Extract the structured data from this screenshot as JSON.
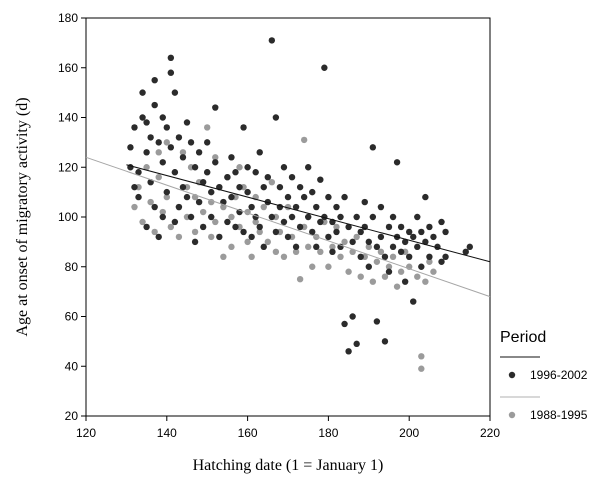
{
  "chart_data": {
    "type": "scatter",
    "xlabel": "Hatching date (1 = January 1)",
    "ylabel": "Age at onset of migratory activity (d)",
    "xlim": [
      120,
      220
    ],
    "ylim": [
      20,
      180
    ],
    "xticks": [
      120,
      140,
      160,
      180,
      200,
      220
    ],
    "yticks": [
      20,
      40,
      60,
      80,
      100,
      120,
      140,
      160,
      180
    ],
    "grid": false,
    "legend": {
      "title": "Period",
      "placement": "right"
    },
    "series": [
      {
        "name": "1996-2002",
        "color": "#2b2b2b",
        "fit_line": {
          "x": [
            130,
            220
          ],
          "y": [
            121,
            82
          ]
        },
        "points": [
          [
            131,
            128
          ],
          [
            131,
            120
          ],
          [
            132,
            136
          ],
          [
            132,
            112
          ],
          [
            133,
            108
          ],
          [
            133,
            118
          ],
          [
            134,
            150
          ],
          [
            134,
            140
          ],
          [
            135,
            138
          ],
          [
            135,
            126
          ],
          [
            135,
            96
          ],
          [
            136,
            132
          ],
          [
            136,
            114
          ],
          [
            137,
            145
          ],
          [
            137,
            104
          ],
          [
            137,
            155
          ],
          [
            138,
            130
          ],
          [
            138,
            92
          ],
          [
            139,
            140
          ],
          [
            139,
            122
          ],
          [
            139,
            100
          ],
          [
            140,
            136
          ],
          [
            140,
            110
          ],
          [
            141,
            128
          ],
          [
            141,
            158
          ],
          [
            141,
            164
          ],
          [
            142,
            150
          ],
          [
            142,
            118
          ],
          [
            142,
            98
          ],
          [
            143,
            132
          ],
          [
            143,
            104
          ],
          [
            144,
            124
          ],
          [
            144,
            112
          ],
          [
            145,
            138
          ],
          [
            145,
            108
          ],
          [
            146,
            130
          ],
          [
            146,
            100
          ],
          [
            147,
            120
          ],
          [
            147,
            90
          ],
          [
            148,
            126
          ],
          [
            148,
            106
          ],
          [
            149,
            114
          ],
          [
            149,
            96
          ],
          [
            150,
            130
          ],
          [
            150,
            118
          ],
          [
            151,
            110
          ],
          [
            151,
            100
          ],
          [
            152,
            144
          ],
          [
            152,
            122
          ],
          [
            153,
            112
          ],
          [
            153,
            92
          ],
          [
            154,
            106
          ],
          [
            155,
            116
          ],
          [
            155,
            98
          ],
          [
            156,
            124
          ],
          [
            156,
            108
          ],
          [
            157,
            118
          ],
          [
            157,
            96
          ],
          [
            158,
            112
          ],
          [
            158,
            102
          ],
          [
            159,
            136
          ],
          [
            159,
            94
          ],
          [
            160,
            120
          ],
          [
            160,
            110
          ],
          [
            161,
            104
          ],
          [
            161,
            92
          ],
          [
            162,
            118
          ],
          [
            162,
            100
          ],
          [
            163,
            126
          ],
          [
            163,
            96
          ],
          [
            164,
            112
          ],
          [
            164,
            88
          ],
          [
            165,
            106
          ],
          [
            165,
            116
          ],
          [
            166,
            171
          ],
          [
            166,
            100
          ],
          [
            167,
            140
          ],
          [
            167,
            94
          ],
          [
            168,
            112
          ],
          [
            168,
            104
          ],
          [
            169,
            98
          ],
          [
            169,
            120
          ],
          [
            170,
            108
          ],
          [
            170,
            92
          ],
          [
            171,
            116
          ],
          [
            171,
            100
          ],
          [
            172,
            104
          ],
          [
            172,
            88
          ],
          [
            173,
            112
          ],
          [
            173,
            96
          ],
          [
            174,
            108
          ],
          [
            175,
            100
          ],
          [
            175,
            120
          ],
          [
            176,
            94
          ],
          [
            176,
            110
          ],
          [
            177,
            104
          ],
          [
            177,
            88
          ],
          [
            178,
            98
          ],
          [
            178,
            115
          ],
          [
            179,
            160
          ],
          [
            179,
            100
          ],
          [
            180,
            92
          ],
          [
            180,
            108
          ],
          [
            181,
            98
          ],
          [
            181,
            86
          ],
          [
            182,
            104
          ],
          [
            182,
            94
          ],
          [
            183,
            100
          ],
          [
            183,
            88
          ],
          [
            184,
            108
          ],
          [
            184,
            57
          ],
          [
            185,
            96
          ],
          [
            185,
            46
          ],
          [
            186,
            60
          ],
          [
            186,
            90
          ],
          [
            187,
            49
          ],
          [
            187,
            100
          ],
          [
            188,
            94
          ],
          [
            188,
            84
          ],
          [
            189,
            106
          ],
          [
            189,
            96
          ],
          [
            190,
            90
          ],
          [
            190,
            80
          ],
          [
            191,
            128
          ],
          [
            191,
            100
          ],
          [
            192,
            88
          ],
          [
            192,
            58
          ],
          [
            193,
            104
          ],
          [
            193,
            92
          ],
          [
            194,
            50
          ],
          [
            194,
            84
          ],
          [
            195,
            96
          ],
          [
            195,
            78
          ],
          [
            196,
            88
          ],
          [
            196,
            100
          ],
          [
            197,
            92
          ],
          [
            197,
            122
          ],
          [
            198,
            86
          ],
          [
            198,
            96
          ],
          [
            199,
            90
          ],
          [
            199,
            74
          ],
          [
            200,
            94
          ],
          [
            200,
            84
          ],
          [
            201,
            66
          ],
          [
            201,
            92
          ],
          [
            202,
            88
          ],
          [
            202,
            100
          ],
          [
            203,
            80
          ],
          [
            203,
            94
          ],
          [
            204,
            90
          ],
          [
            204,
            108
          ],
          [
            205,
            84
          ],
          [
            205,
            96
          ],
          [
            206,
            92
          ],
          [
            207,
            88
          ],
          [
            208,
            82
          ],
          [
            208,
            98
          ],
          [
            209,
            84
          ],
          [
            209,
            94
          ],
          [
            215,
            88
          ],
          [
            214,
            86
          ]
        ]
      },
      {
        "name": "1988-1995",
        "color": "#9b9b9b",
        "fit_line": {
          "x": [
            120,
            220
          ],
          "y": [
            124,
            68
          ]
        },
        "points": [
          [
            132,
            104
          ],
          [
            133,
            112
          ],
          [
            134,
            98
          ],
          [
            135,
            120
          ],
          [
            136,
            106
          ],
          [
            137,
            94
          ],
          [
            138,
            116
          ],
          [
            138,
            126
          ],
          [
            139,
            102
          ],
          [
            140,
            130
          ],
          [
            140,
            108
          ],
          [
            141,
            96
          ],
          [
            141,
            158
          ],
          [
            142,
            118
          ],
          [
            143,
            104
          ],
          [
            143,
            92
          ],
          [
            144,
            126
          ],
          [
            145,
            112
          ],
          [
            145,
            100
          ],
          [
            146,
            120
          ],
          [
            147,
            108
          ],
          [
            147,
            94
          ],
          [
            148,
            114
          ],
          [
            149,
            102
          ],
          [
            150,
            136
          ],
          [
            150,
            118
          ],
          [
            151,
            106
          ],
          [
            151,
            92
          ],
          [
            152,
            124
          ],
          [
            152,
            98
          ],
          [
            153,
            112
          ],
          [
            154,
            84
          ],
          [
            154,
            104
          ],
          [
            155,
            116
          ],
          [
            156,
            100
          ],
          [
            156,
            88
          ],
          [
            157,
            108
          ],
          [
            158,
            96
          ],
          [
            158,
            120
          ],
          [
            159,
            112
          ],
          [
            160,
            102
          ],
          [
            160,
            90
          ],
          [
            161,
            84
          ],
          [
            162,
            108
          ],
          [
            162,
            98
          ],
          [
            163,
            94
          ],
          [
            164,
            104
          ],
          [
            165,
            90
          ],
          [
            166,
            114
          ],
          [
            167,
            100
          ],
          [
            167,
            86
          ],
          [
            168,
            94
          ],
          [
            169,
            84
          ],
          [
            170,
            104
          ],
          [
            171,
            92
          ],
          [
            172,
            86
          ],
          [
            173,
            75
          ],
          [
            174,
            96
          ],
          [
            174,
            131
          ],
          [
            175,
            88
          ],
          [
            176,
            80
          ],
          [
            177,
            92
          ],
          [
            178,
            86
          ],
          [
            179,
            98
          ],
          [
            180,
            80
          ],
          [
            181,
            88
          ],
          [
            182,
            96
          ],
          [
            183,
            84
          ],
          [
            184,
            90
          ],
          [
            185,
            78
          ],
          [
            186,
            86
          ],
          [
            187,
            92
          ],
          [
            188,
            76
          ],
          [
            189,
            84
          ],
          [
            190,
            88
          ],
          [
            191,
            74
          ],
          [
            192,
            82
          ],
          [
            193,
            86
          ],
          [
            194,
            76
          ],
          [
            195,
            80
          ],
          [
            196,
            84
          ],
          [
            197,
            72
          ],
          [
            198,
            78
          ],
          [
            199,
            86
          ],
          [
            200,
            80
          ],
          [
            202,
            76
          ],
          [
            203,
            44
          ],
          [
            203,
            39
          ],
          [
            204,
            74
          ],
          [
            205,
            82
          ],
          [
            206,
            78
          ]
        ]
      }
    ]
  }
}
